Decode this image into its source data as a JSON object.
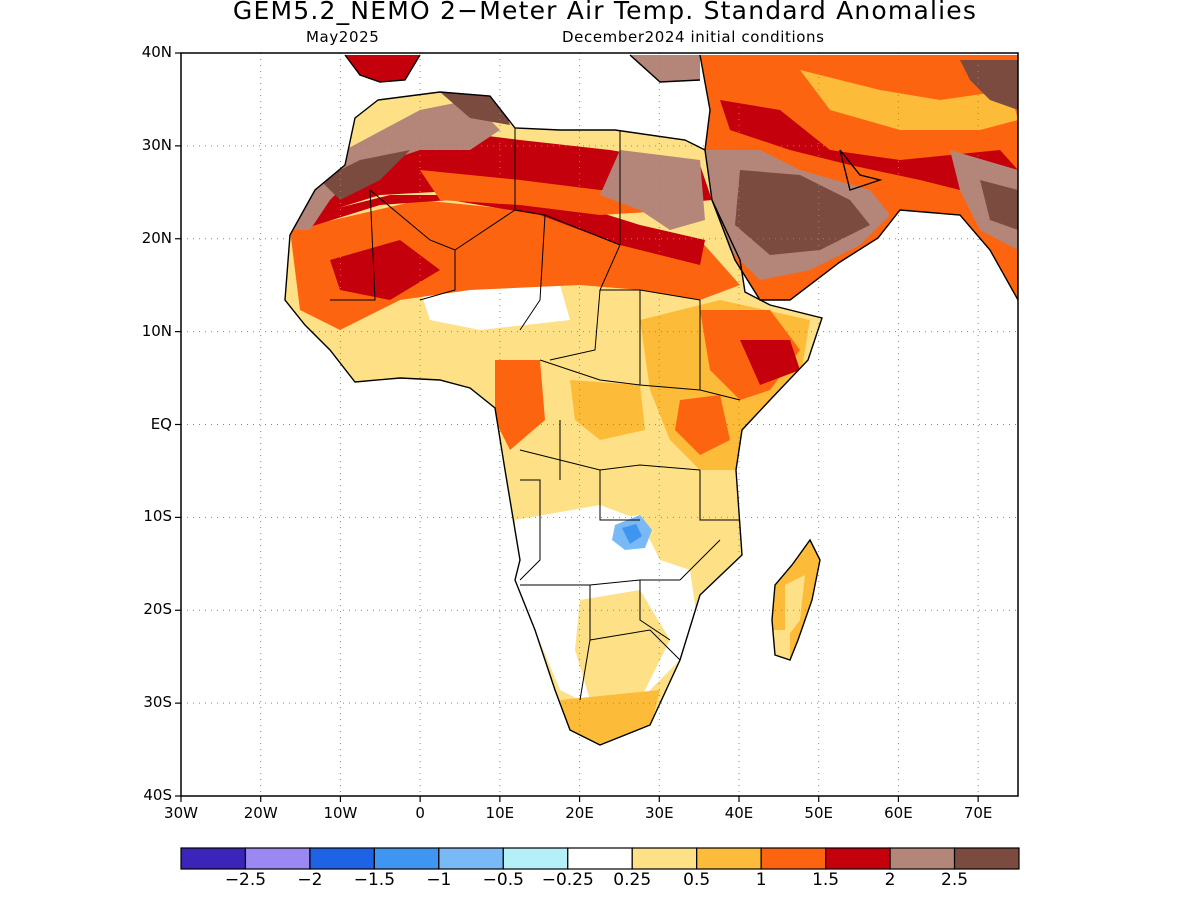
{
  "header": {
    "title": "GEM5.2_NEMO 2−Meter Air Temp. Standard Anomalies",
    "subtitle_left": "May2025",
    "subtitle_right": "December2024 initial conditions"
  },
  "map": {
    "lat_range": [
      -40,
      40
    ],
    "lon_range": [
      -30,
      75
    ],
    "lat_ticks": [
      "40N",
      "30N",
      "20N",
      "10N",
      "EQ",
      "10S",
      "20S",
      "30S",
      "40S"
    ],
    "lon_ticks": [
      "30W",
      "20W",
      "10W",
      "0",
      "10E",
      "20E",
      "30E",
      "40E",
      "50E",
      "60E",
      "70E"
    ],
    "grid": true,
    "ocean_color": "#ffffff"
  },
  "legend": {
    "colors": [
      "#3a25b8",
      "#9b88f3",
      "#1e63e6",
      "#3f95f2",
      "#78b9f6",
      "#b5f0f8",
      "#ffffff",
      "#fee187",
      "#fdbb3a",
      "#fd6410",
      "#c4000c",
      "#b38679",
      "#7b4b3f"
    ],
    "labels": [
      "−2.5",
      "−2",
      "−1.5",
      "−1",
      "−0.5",
      "−0.25",
      "0.25",
      "0.5",
      "1",
      "1.5",
      "2",
      "2.5"
    ]
  }
}
